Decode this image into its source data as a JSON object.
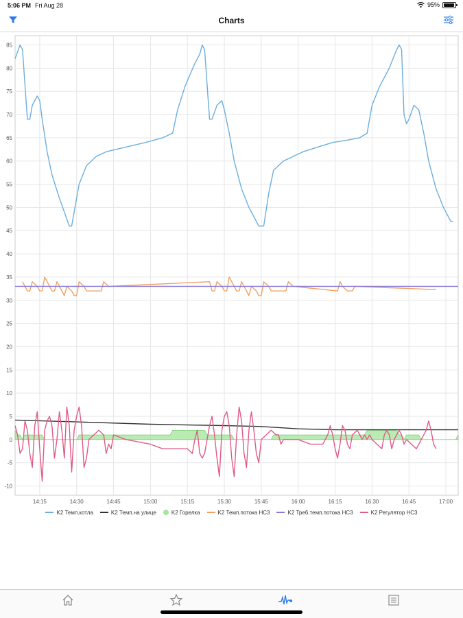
{
  "status_bar": {
    "time": "5:06 PM",
    "date": "Fri Aug 28",
    "battery": "95%",
    "battery_level": 0.95
  },
  "navbar": {
    "title": "Charts",
    "left_icon": "filter-icon",
    "right_icon": "sliders-icon"
  },
  "colors": {
    "boiler_temp": "#6aaee0",
    "outdoor_temp": "#333333",
    "burner": "#a8e6a0",
    "flow_temp": "#f0a060",
    "required_flow": "#8878d8",
    "regulator": "#e05a88",
    "grid": "#e6e6e6"
  },
  "tabbar": {
    "tabs": [
      "home-icon",
      "star-icon",
      "charts-icon",
      "list-icon"
    ],
    "active": "charts-icon"
  },
  "chart_data": {
    "type": "line",
    "title": "",
    "xlabel": "",
    "ylabel": "",
    "xlim": [
      "14:05",
      "17:05"
    ],
    "ylim": [
      -12,
      87
    ],
    "yticks": [
      -10,
      -5,
      0,
      5,
      10,
      15,
      20,
      25,
      30,
      35,
      40,
      45,
      50,
      55,
      60,
      65,
      70,
      75,
      80,
      85
    ],
    "xticks": [
      "14:15",
      "14:30",
      "14:45",
      "15:00",
      "15:15",
      "15:30",
      "15:45",
      "16:00",
      "16:15",
      "16:30",
      "16:45",
      "17:00"
    ],
    "grid": true,
    "legend_position": "bottom",
    "series": [
      {
        "name": "K2 Темп.котла",
        "style": "line",
        "points": [
          [
            "14:05",
            82
          ],
          [
            "14:07",
            85
          ],
          [
            "14:08",
            84
          ],
          [
            "14:10",
            69
          ],
          [
            "14:11",
            69
          ],
          [
            "14:12",
            72
          ],
          [
            "14:14",
            74
          ],
          [
            "14:15",
            73
          ],
          [
            "14:16",
            69
          ],
          [
            "14:18",
            62
          ],
          [
            "14:20",
            57
          ],
          [
            "14:23",
            52
          ],
          [
            "14:25",
            49
          ],
          [
            "14:27",
            46
          ],
          [
            "14:28",
            46
          ],
          [
            "14:31",
            55
          ],
          [
            "14:34",
            59
          ],
          [
            "14:38",
            61
          ],
          [
            "14:42",
            62
          ],
          [
            "14:50",
            63
          ],
          [
            "14:58",
            64
          ],
          [
            "15:05",
            65
          ],
          [
            "15:09",
            66
          ],
          [
            "15:11",
            71
          ],
          [
            "15:14",
            76
          ],
          [
            "15:18",
            81
          ],
          [
            "15:20",
            83
          ],
          [
            "15:21",
            85
          ],
          [
            "15:22",
            84
          ],
          [
            "15:24",
            69
          ],
          [
            "15:25",
            69
          ],
          [
            "15:27",
            72
          ],
          [
            "15:29",
            73
          ],
          [
            "15:30",
            71
          ],
          [
            "15:32",
            66
          ],
          [
            "15:34",
            60
          ],
          [
            "15:37",
            54
          ],
          [
            "15:40",
            50
          ],
          [
            "15:43",
            47
          ],
          [
            "15:44",
            46
          ],
          [
            "15:46",
            46
          ],
          [
            "15:48",
            53
          ],
          [
            "15:50",
            58
          ],
          [
            "15:54",
            60
          ],
          [
            "15:58",
            61
          ],
          [
            "16:02",
            62
          ],
          [
            "16:08",
            63
          ],
          [
            "16:14",
            64
          ],
          [
            "16:20",
            64.5
          ],
          [
            "16:25",
            65
          ],
          [
            "16:28",
            66
          ],
          [
            "16:30",
            72
          ],
          [
            "16:33",
            76
          ],
          [
            "16:37",
            80
          ],
          [
            "16:40",
            84
          ],
          [
            "16:41",
            85
          ],
          [
            "16:42",
            84
          ],
          [
            "16:43",
            70
          ],
          [
            "16:44",
            68
          ],
          [
            "16:45",
            69
          ],
          [
            "16:47",
            72
          ],
          [
            "16:49",
            71
          ],
          [
            "16:51",
            66
          ],
          [
            "16:53",
            60
          ],
          [
            "16:56",
            54
          ],
          [
            "16:59",
            50
          ],
          [
            "17:02",
            47
          ],
          [
            "17:03",
            47
          ]
        ]
      },
      {
        "name": "K2 Темп.на улице",
        "style": "line",
        "points": [
          [
            "14:05",
            4.2
          ],
          [
            "14:30",
            3.8
          ],
          [
            "15:00",
            3.3
          ],
          [
            "15:30",
            3.0
          ],
          [
            "15:45",
            2.8
          ],
          [
            "16:00",
            2.3
          ],
          [
            "16:15",
            2.1
          ],
          [
            "16:30",
            2.1
          ],
          [
            "17:05",
            2.1
          ]
        ]
      },
      {
        "name": "K2 Горелка",
        "style": "area",
        "points": [
          [
            "14:05",
            2
          ],
          [
            "14:06",
            1
          ],
          [
            "14:07",
            1
          ],
          [
            "14:08",
            0
          ],
          [
            "14:09",
            1
          ],
          [
            "14:16",
            1
          ],
          [
            "14:17",
            0
          ],
          [
            "14:30",
            0
          ],
          [
            "14:31",
            1
          ],
          [
            "15:08",
            1
          ],
          [
            "15:09",
            2
          ],
          [
            "15:22",
            2
          ],
          [
            "15:23",
            1
          ],
          [
            "15:33",
            1
          ],
          [
            "15:34",
            0
          ],
          [
            "15:49",
            0
          ],
          [
            "15:50",
            1
          ],
          [
            "16:27",
            1
          ],
          [
            "16:28",
            2
          ],
          [
            "16:40",
            2
          ],
          [
            "16:41",
            1
          ],
          [
            "16:42",
            1
          ],
          [
            "16:43",
            0
          ],
          [
            "16:44",
            1
          ],
          [
            "16:49",
            1
          ],
          [
            "16:50",
            0
          ],
          [
            "17:04",
            0
          ],
          [
            "17:05",
            1
          ]
        ]
      },
      {
        "name": "K2 Темп.потока НС3",
        "style": "line",
        "points": [
          [
            "14:08",
            34
          ],
          [
            "14:10",
            32
          ],
          [
            "14:11",
            32
          ],
          [
            "14:12",
            34
          ],
          [
            "14:14",
            33
          ],
          [
            "14:15",
            32
          ],
          [
            "14:16",
            32
          ],
          [
            "14:17",
            35
          ],
          [
            "14:18",
            34
          ],
          [
            "14:20",
            32
          ],
          [
            "14:21",
            32
          ],
          [
            "14:22",
            34
          ],
          [
            "14:24",
            32
          ],
          [
            "14:25",
            31
          ],
          [
            "14:26",
            33
          ],
          [
            "14:28",
            32
          ],
          [
            "14:29",
            31
          ],
          [
            "14:30",
            31
          ],
          [
            "14:31",
            34
          ],
          [
            "14:33",
            33
          ],
          [
            "14:34",
            32
          ],
          [
            "14:40",
            32
          ],
          [
            "14:41",
            34
          ],
          [
            "14:43",
            33
          ],
          [
            "15:24",
            34
          ],
          [
            "15:25",
            32
          ],
          [
            "15:26",
            32
          ],
          [
            "15:27",
            34
          ],
          [
            "15:29",
            33
          ],
          [
            "15:30",
            32
          ],
          [
            "15:31",
            32
          ],
          [
            "15:32",
            35
          ],
          [
            "15:33",
            34
          ],
          [
            "15:35",
            32
          ],
          [
            "15:36",
            32
          ],
          [
            "15:37",
            34
          ],
          [
            "15:39",
            32
          ],
          [
            "15:40",
            31
          ],
          [
            "15:41",
            33
          ],
          [
            "15:43",
            32
          ],
          [
            "15:44",
            31
          ],
          [
            "15:45",
            31
          ],
          [
            "15:46",
            34
          ],
          [
            "15:48",
            33
          ],
          [
            "15:49",
            32
          ],
          [
            "15:55",
            32
          ],
          [
            "15:56",
            34
          ],
          [
            "15:58",
            33
          ],
          [
            "16:16",
            32
          ],
          [
            "16:17",
            34
          ],
          [
            "16:18",
            33
          ],
          [
            "16:20",
            32
          ],
          [
            "16:22",
            32
          ],
          [
            "16:23",
            33
          ],
          [
            "16:56",
            32.3
          ]
        ]
      },
      {
        "name": "K2 Треб.темп.потока НС3",
        "style": "line",
        "points": [
          [
            "14:05",
            33
          ],
          [
            "17:05",
            33
          ]
        ]
      },
      {
        "name": "K2 Регулятор НС3",
        "style": "line",
        "points": [
          [
            "14:05",
            3
          ],
          [
            "14:06",
            1
          ],
          [
            "14:07",
            -3
          ],
          [
            "14:08",
            -2
          ],
          [
            "14:09",
            4
          ],
          [
            "14:10",
            2
          ],
          [
            "14:11",
            -3
          ],
          [
            "14:12",
            -6
          ],
          [
            "14:13",
            3
          ],
          [
            "14:14",
            6
          ],
          [
            "14:15",
            -2
          ],
          [
            "14:16",
            -9
          ],
          [
            "14:17",
            2
          ],
          [
            "14:18",
            4
          ],
          [
            "14:19",
            5
          ],
          [
            "14:20",
            3
          ],
          [
            "14:21",
            -4
          ],
          [
            "14:22",
            0
          ],
          [
            "14:23",
            6
          ],
          [
            "14:24",
            2
          ],
          [
            "14:25",
            -4
          ],
          [
            "14:26",
            7
          ],
          [
            "14:27",
            3
          ],
          [
            "14:28",
            -7
          ],
          [
            "14:29",
            2
          ],
          [
            "14:30",
            5
          ],
          [
            "14:31",
            7
          ],
          [
            "14:32",
            3
          ],
          [
            "14:33",
            -6
          ],
          [
            "14:34",
            -4
          ],
          [
            "14:35",
            0
          ],
          [
            "14:37",
            1
          ],
          [
            "14:39",
            2
          ],
          [
            "14:41",
            1
          ],
          [
            "14:42",
            -3
          ],
          [
            "14:43",
            -1
          ],
          [
            "14:44",
            -2
          ],
          [
            "14:45",
            1
          ],
          [
            "14:50",
            0
          ],
          [
            "15:00",
            -1
          ],
          [
            "15:05",
            -2
          ],
          [
            "15:15",
            -2
          ],
          [
            "15:17",
            -3
          ],
          [
            "15:18",
            0
          ],
          [
            "15:19",
            2
          ],
          [
            "15:20",
            -3
          ],
          [
            "15:21",
            -4
          ],
          [
            "15:22",
            -3
          ],
          [
            "15:24",
            3
          ],
          [
            "15:25",
            5
          ],
          [
            "15:26",
            1
          ],
          [
            "15:27",
            -4
          ],
          [
            "15:28",
            -8
          ],
          [
            "15:29",
            2
          ],
          [
            "15:30",
            5
          ],
          [
            "15:31",
            6
          ],
          [
            "15:32",
            3
          ],
          [
            "15:33",
            -4
          ],
          [
            "15:34",
            -8
          ],
          [
            "15:35",
            1
          ],
          [
            "15:36",
            7
          ],
          [
            "15:37",
            4
          ],
          [
            "15:38",
            -3
          ],
          [
            "15:39",
            -6
          ],
          [
            "15:40",
            2
          ],
          [
            "15:41",
            6
          ],
          [
            "15:42",
            2
          ],
          [
            "15:43",
            -3
          ],
          [
            "15:44",
            -5
          ],
          [
            "15:45",
            0
          ],
          [
            "15:47",
            1
          ],
          [
            "15:49",
            2
          ],
          [
            "15:51",
            1
          ],
          [
            "15:52",
            1
          ],
          [
            "15:53",
            -1
          ],
          [
            "15:54",
            0
          ],
          [
            "16:00",
            0
          ],
          [
            "16:05",
            -1
          ],
          [
            "16:10",
            -1
          ],
          [
            "16:12",
            1
          ],
          [
            "16:13",
            3
          ],
          [
            "16:14",
            1
          ],
          [
            "16:15",
            -2
          ],
          [
            "16:16",
            -4
          ],
          [
            "16:17",
            -1
          ],
          [
            "16:18",
            3
          ],
          [
            "16:19",
            2
          ],
          [
            "16:20",
            -1
          ],
          [
            "16:21",
            -2
          ],
          [
            "16:22",
            1
          ],
          [
            "16:24",
            2
          ],
          [
            "16:25",
            1
          ],
          [
            "16:26",
            0
          ],
          [
            "16:27",
            1
          ],
          [
            "16:28",
            0
          ],
          [
            "16:29",
            1
          ],
          [
            "16:30",
            0
          ],
          [
            "16:32",
            -1
          ],
          [
            "16:34",
            -2
          ],
          [
            "16:35",
            1
          ],
          [
            "16:36",
            2
          ],
          [
            "16:37",
            1
          ],
          [
            "16:38",
            -2
          ],
          [
            "16:39",
            0
          ],
          [
            "16:40",
            1
          ],
          [
            "16:41",
            2
          ],
          [
            "16:42",
            1
          ],
          [
            "16:43",
            -1
          ],
          [
            "16:44",
            0
          ],
          [
            "16:46",
            -1
          ],
          [
            "16:48",
            -2
          ],
          [
            "16:50",
            0
          ],
          [
            "16:52",
            2
          ],
          [
            "16:53",
            4
          ],
          [
            "16:54",
            2
          ],
          [
            "16:55",
            -1
          ],
          [
            "16:56",
            -2
          ]
        ]
      }
    ]
  }
}
